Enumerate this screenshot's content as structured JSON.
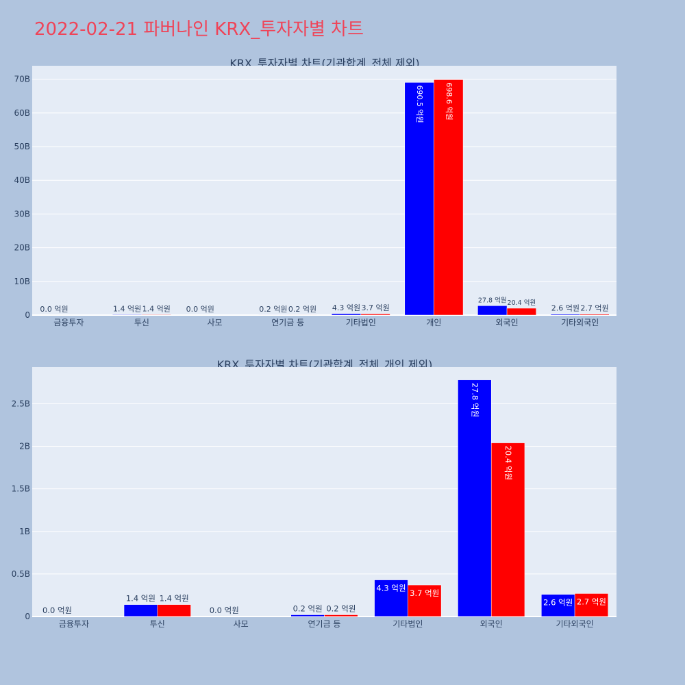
{
  "title": "2022-02-21 파버나인 KRX_투자자별 차트",
  "colors": {
    "buy": "#0000ff",
    "sell": "#ff0000",
    "plot_bg": "#e5ecf6",
    "page_bg": "#b0c4de",
    "title": "#ef4458"
  },
  "chart_data": [
    {
      "type": "bar",
      "title": "KRX_투자자별 차트(기관합계_전체 제외)",
      "categories": [
        "금융투자",
        "투신",
        "사모",
        "연기금 등",
        "기타법인",
        "개인",
        "외국인",
        "기타외국인"
      ],
      "series": [
        {
          "values": [
            0.0,
            0.14,
            0.0,
            0.02,
            0.43,
            69.05,
            2.78,
            0.26
          ],
          "labels": [
            "0.0 억원",
            "1.4 억원",
            "0.0 억원",
            "0.2 억원",
            "4.3 억원",
            "690.5 억원",
            "27.8 억원",
            "2.6 억원"
          ]
        },
        {
          "values": [
            0.0,
            0.14,
            0.0,
            0.02,
            0.37,
            69.86,
            2.04,
            0.27
          ],
          "labels": [
            "",
            "1.4 억원",
            "",
            "0.2 억원",
            "3.7 억원",
            "698.6 억원",
            "20.4 억원",
            "2.7 억원"
          ]
        }
      ],
      "yunit": "B",
      "ylim": [
        0,
        74
      ],
      "yticks": [
        0,
        10,
        20,
        30,
        40,
        50,
        60,
        70
      ],
      "yticklabels": [
        "0",
        "10B",
        "20B",
        "30B",
        "40B",
        "50B",
        "60B",
        "70B"
      ],
      "grid": true
    },
    {
      "type": "bar",
      "title": "KRX_투자자별 차트(기관합계_전체_개인 제외)",
      "categories": [
        "금융투자",
        "투신",
        "사모",
        "연기금 등",
        "기타법인",
        "외국인",
        "기타외국인"
      ],
      "series": [
        {
          "values": [
            0.0,
            0.14,
            0.0,
            0.02,
            0.43,
            2.78,
            0.26
          ],
          "labels": [
            "0.0 억원",
            "1.4 억원",
            "0.0 억원",
            "0.2 억원",
            "4.3 억원",
            "27.8 억원",
            "2.6 억원"
          ]
        },
        {
          "values": [
            0.0,
            0.14,
            0.0,
            0.02,
            0.37,
            2.04,
            0.27
          ],
          "labels": [
            "",
            "1.4 억원",
            "",
            "0.2 억원",
            "3.7 억원",
            "20.4 억원",
            "2.7 억원"
          ]
        }
      ],
      "yunit": "B",
      "ylim": [
        0,
        2.93
      ],
      "yticks": [
        0,
        0.5,
        1,
        1.5,
        2,
        2.5
      ],
      "yticklabels": [
        "0",
        "0.5B",
        "1B",
        "1.5B",
        "2B",
        "2.5B"
      ],
      "grid": true
    }
  ]
}
